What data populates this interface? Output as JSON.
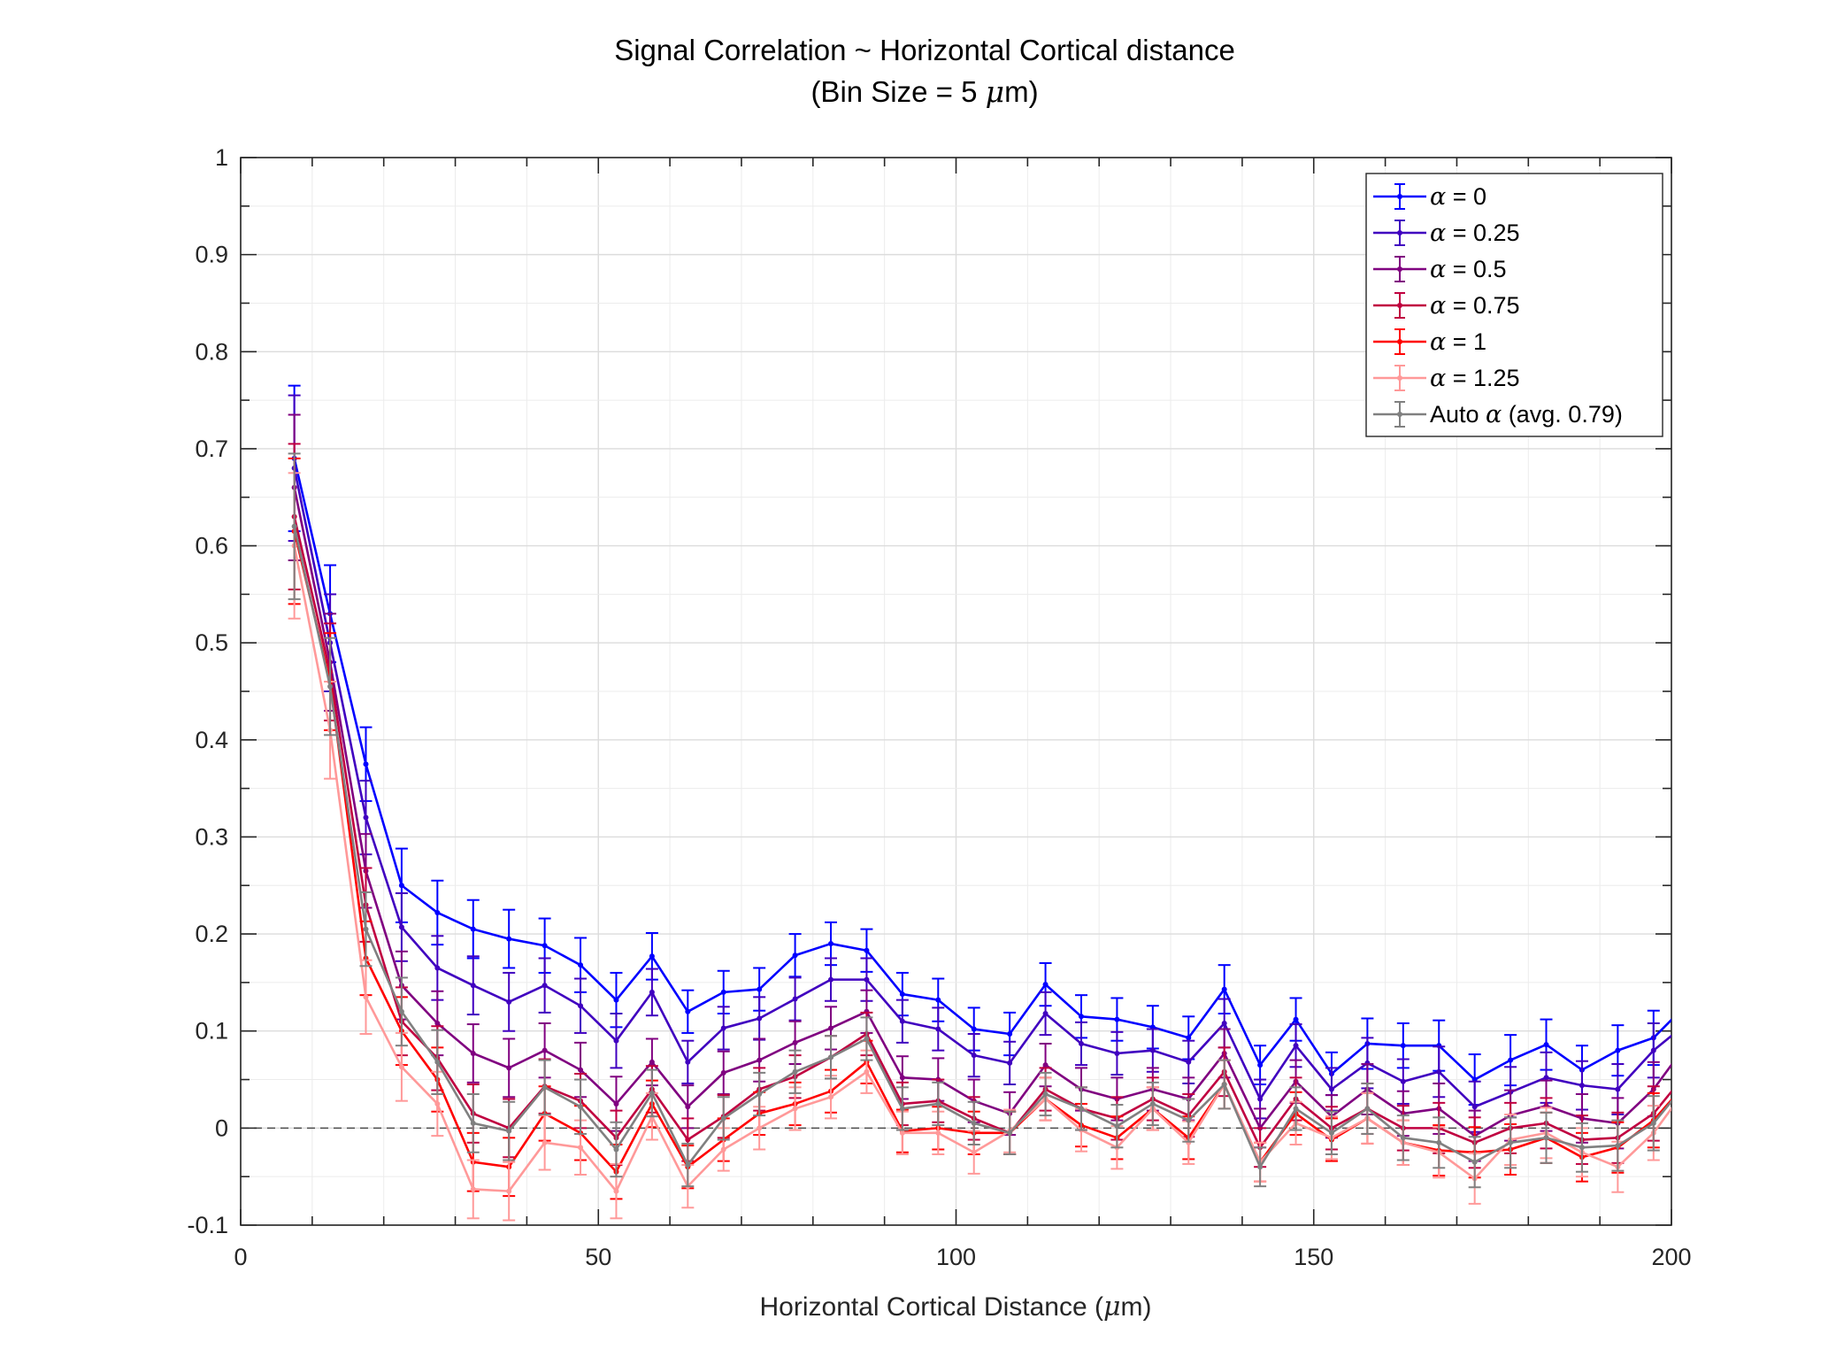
{
  "chart_data": {
    "type": "line",
    "title": "Signal Correlation ~ Horizontal Cortical distance",
    "subtitle_prefix": "(Bin Size = 5 ",
    "subtitle_symbol": "μ",
    "subtitle_suffix": "m)",
    "xlabel_prefix": "Horizontal Cortical Distance (",
    "xlabel_symbol": "μ",
    "xlabel_suffix": "m)",
    "ylabel": "",
    "xlim": [
      0,
      200
    ],
    "ylim": [
      -0.1,
      1
    ],
    "xticks": [
      "0",
      "50",
      "100",
      "150",
      "200"
    ],
    "yticks": [
      "-0.1",
      "0",
      "0.1",
      "0.2",
      "0.3",
      "0.4",
      "0.5",
      "0.6",
      "0.7",
      "0.8",
      "0.9",
      "1"
    ],
    "grid": true,
    "legend_position": "top-right",
    "reference_line_y": 0,
    "x": [
      7.5,
      12.5,
      17.5,
      22.5,
      27.5,
      32.5,
      37.5,
      42.5,
      47.5,
      52.5,
      57.5,
      62.5,
      67.5,
      72.5,
      77.5,
      82.5,
      87.5,
      92.5,
      97.5,
      102.5,
      107.5,
      112.5,
      117.5,
      122.5,
      127.5,
      132.5,
      137.5,
      142.5,
      147.5,
      152.5,
      157.5,
      162.5,
      167.5,
      172.5,
      177.5,
      182.5,
      187.5,
      192.5,
      197.5,
      202.5
    ],
    "series": [
      {
        "name": "= 0",
        "symbol": "α",
        "color": "#0000ff",
        "values": [
          0.69,
          0.53,
          0.375,
          0.25,
          0.222,
          0.205,
          0.195,
          0.188,
          0.168,
          0.132,
          0.177,
          0.12,
          0.14,
          0.143,
          0.178,
          0.19,
          0.183,
          0.138,
          0.132,
          0.102,
          0.097,
          0.148,
          0.115,
          0.112,
          0.104,
          0.093,
          0.143,
          0.065,
          0.112,
          0.056,
          0.087,
          0.085,
          0.085,
          0.05,
          0.07,
          0.086,
          0.06,
          0.08,
          0.093,
          0.13
        ],
        "err": [
          0.075,
          0.05,
          0.038,
          0.038,
          0.033,
          0.03,
          0.03,
          0.028,
          0.028,
          0.028,
          0.024,
          0.022,
          0.022,
          0.022,
          0.022,
          0.022,
          0.022,
          0.022,
          0.022,
          0.022,
          0.022,
          0.022,
          0.022,
          0.022,
          0.022,
          0.022,
          0.025,
          0.02,
          0.022,
          0.022,
          0.026,
          0.023,
          0.026,
          0.026,
          0.026,
          0.026,
          0.025,
          0.026,
          0.028,
          0.03
        ]
      },
      {
        "name": "= 0.25",
        "symbol": "α",
        "color": "#4000c0",
        "values": [
          0.68,
          0.5,
          0.32,
          0.207,
          0.165,
          0.147,
          0.13,
          0.147,
          0.126,
          0.09,
          0.14,
          0.068,
          0.103,
          0.113,
          0.133,
          0.153,
          0.153,
          0.11,
          0.102,
          0.075,
          0.067,
          0.118,
          0.087,
          0.077,
          0.08,
          0.068,
          0.108,
          0.03,
          0.085,
          0.04,
          0.067,
          0.048,
          0.058,
          0.022,
          0.037,
          0.052,
          0.044,
          0.04,
          0.08,
          0.11
        ],
        "err": [
          0.075,
          0.05,
          0.038,
          0.035,
          0.033,
          0.03,
          0.03,
          0.028,
          0.028,
          0.028,
          0.024,
          0.022,
          0.022,
          0.022,
          0.022,
          0.022,
          0.022,
          0.022,
          0.022,
          0.022,
          0.022,
          0.022,
          0.022,
          0.022,
          0.022,
          0.022,
          0.025,
          0.02,
          0.022,
          0.022,
          0.026,
          0.023,
          0.026,
          0.026,
          0.026,
          0.026,
          0.025,
          0.026,
          0.028,
          0.03
        ]
      },
      {
        "name": "= 0.5",
        "symbol": "α",
        "color": "#800080",
        "values": [
          0.66,
          0.48,
          0.265,
          0.147,
          0.108,
          0.077,
          0.062,
          0.08,
          0.06,
          0.025,
          0.068,
          0.022,
          0.057,
          0.07,
          0.088,
          0.103,
          0.12,
          0.052,
          0.05,
          0.028,
          0.015,
          0.065,
          0.04,
          0.03,
          0.04,
          0.03,
          0.077,
          0.0,
          0.048,
          0.012,
          0.04,
          0.015,
          0.02,
          -0.008,
          0.013,
          0.023,
          0.01,
          0.005,
          0.04,
          0.09
        ],
        "err": [
          0.075,
          0.05,
          0.038,
          0.035,
          0.033,
          0.03,
          0.03,
          0.028,
          0.028,
          0.028,
          0.024,
          0.022,
          0.022,
          0.022,
          0.022,
          0.022,
          0.022,
          0.022,
          0.022,
          0.022,
          0.022,
          0.022,
          0.022,
          0.022,
          0.022,
          0.022,
          0.025,
          0.02,
          0.022,
          0.022,
          0.026,
          0.023,
          0.026,
          0.026,
          0.026,
          0.026,
          0.025,
          0.026,
          0.028,
          0.03
        ]
      },
      {
        "name": "= 0.75",
        "symbol": "α",
        "color": "#c00040",
        "values": [
          0.63,
          0.47,
          0.23,
          0.11,
          0.072,
          0.015,
          0.0,
          0.043,
          0.028,
          -0.01,
          0.04,
          -0.012,
          0.012,
          0.04,
          0.053,
          0.073,
          0.097,
          0.025,
          0.028,
          0.01,
          -0.005,
          0.04,
          0.02,
          0.01,
          0.03,
          0.013,
          0.058,
          -0.02,
          0.03,
          0.0,
          0.02,
          0.0,
          0.0,
          -0.015,
          0.0,
          0.005,
          -0.012,
          -0.01,
          0.015,
          0.06
        ],
        "err": [
          0.075,
          0.05,
          0.038,
          0.035,
          0.033,
          0.03,
          0.03,
          0.028,
          0.028,
          0.028,
          0.024,
          0.022,
          0.022,
          0.022,
          0.022,
          0.022,
          0.022,
          0.022,
          0.022,
          0.022,
          0.022,
          0.022,
          0.022,
          0.022,
          0.022,
          0.022,
          0.025,
          0.02,
          0.022,
          0.022,
          0.026,
          0.023,
          0.026,
          0.026,
          0.026,
          0.026,
          0.025,
          0.026,
          0.028,
          0.03
        ]
      },
      {
        "name": "= 1",
        "symbol": "α",
        "color": "#ff0000",
        "values": [
          0.615,
          0.46,
          0.175,
          0.1,
          0.05,
          -0.035,
          -0.04,
          0.015,
          -0.005,
          -0.045,
          0.025,
          -0.04,
          -0.012,
          0.015,
          0.025,
          0.038,
          0.068,
          -0.003,
          0.0,
          -0.005,
          -0.005,
          0.03,
          0.003,
          -0.01,
          0.02,
          -0.01,
          0.045,
          -0.035,
          0.015,
          -0.012,
          0.01,
          -0.015,
          -0.023,
          -0.025,
          -0.022,
          -0.01,
          -0.03,
          -0.02,
          0.008,
          0.05
        ],
        "err": [
          0.075,
          0.05,
          0.038,
          0.035,
          0.033,
          0.03,
          0.03,
          0.028,
          0.028,
          0.028,
          0.024,
          0.022,
          0.022,
          0.022,
          0.022,
          0.022,
          0.022,
          0.022,
          0.022,
          0.022,
          0.022,
          0.022,
          0.022,
          0.022,
          0.022,
          0.022,
          0.025,
          0.02,
          0.022,
          0.022,
          0.026,
          0.023,
          0.026,
          0.026,
          0.026,
          0.026,
          0.025,
          0.026,
          0.028,
          0.03
        ]
      },
      {
        "name": "= 1.25",
        "symbol": "α",
        "color": "#ff9999",
        "values": [
          0.6,
          0.41,
          0.135,
          0.063,
          0.025,
          -0.063,
          -0.065,
          -0.015,
          -0.02,
          -0.065,
          0.012,
          -0.06,
          -0.022,
          0.0,
          0.02,
          0.032,
          0.058,
          -0.005,
          -0.005,
          -0.025,
          -0.003,
          0.03,
          -0.002,
          -0.02,
          0.02,
          -0.015,
          0.045,
          -0.035,
          0.005,
          -0.01,
          0.01,
          -0.015,
          -0.025,
          -0.052,
          -0.012,
          -0.005,
          -0.025,
          -0.04,
          -0.005,
          0.045
        ],
        "err": [
          0.075,
          0.05,
          0.038,
          0.035,
          0.033,
          0.03,
          0.03,
          0.028,
          0.028,
          0.028,
          0.024,
          0.022,
          0.022,
          0.022,
          0.022,
          0.022,
          0.022,
          0.022,
          0.022,
          0.022,
          0.022,
          0.022,
          0.022,
          0.022,
          0.022,
          0.022,
          0.025,
          0.02,
          0.022,
          0.022,
          0.026,
          0.023,
          0.026,
          0.026,
          0.026,
          0.026,
          0.025,
          0.026,
          0.028,
          0.03
        ]
      },
      {
        "name_prefix": "Auto ",
        "symbol": "α",
        "name": "(avg. 0.79)",
        "color": "#808080",
        "values": [
          0.62,
          0.455,
          0.205,
          0.12,
          0.068,
          0.005,
          -0.003,
          0.042,
          0.022,
          -0.022,
          0.036,
          -0.038,
          0.01,
          0.035,
          0.058,
          0.073,
          0.092,
          0.02,
          0.025,
          0.005,
          -0.005,
          0.035,
          0.02,
          0.002,
          0.025,
          0.008,
          0.045,
          -0.04,
          0.02,
          -0.005,
          0.02,
          -0.01,
          -0.015,
          -0.035,
          -0.015,
          -0.01,
          -0.02,
          -0.018,
          0.005,
          0.05
        ],
        "err": [
          0.075,
          0.05,
          0.038,
          0.035,
          0.033,
          0.03,
          0.03,
          0.028,
          0.028,
          0.028,
          0.024,
          0.022,
          0.022,
          0.022,
          0.022,
          0.022,
          0.022,
          0.022,
          0.022,
          0.022,
          0.022,
          0.022,
          0.022,
          0.022,
          0.022,
          0.022,
          0.025,
          0.02,
          0.022,
          0.022,
          0.026,
          0.023,
          0.026,
          0.026,
          0.026,
          0.026,
          0.025,
          0.026,
          0.028,
          0.03
        ]
      }
    ]
  }
}
